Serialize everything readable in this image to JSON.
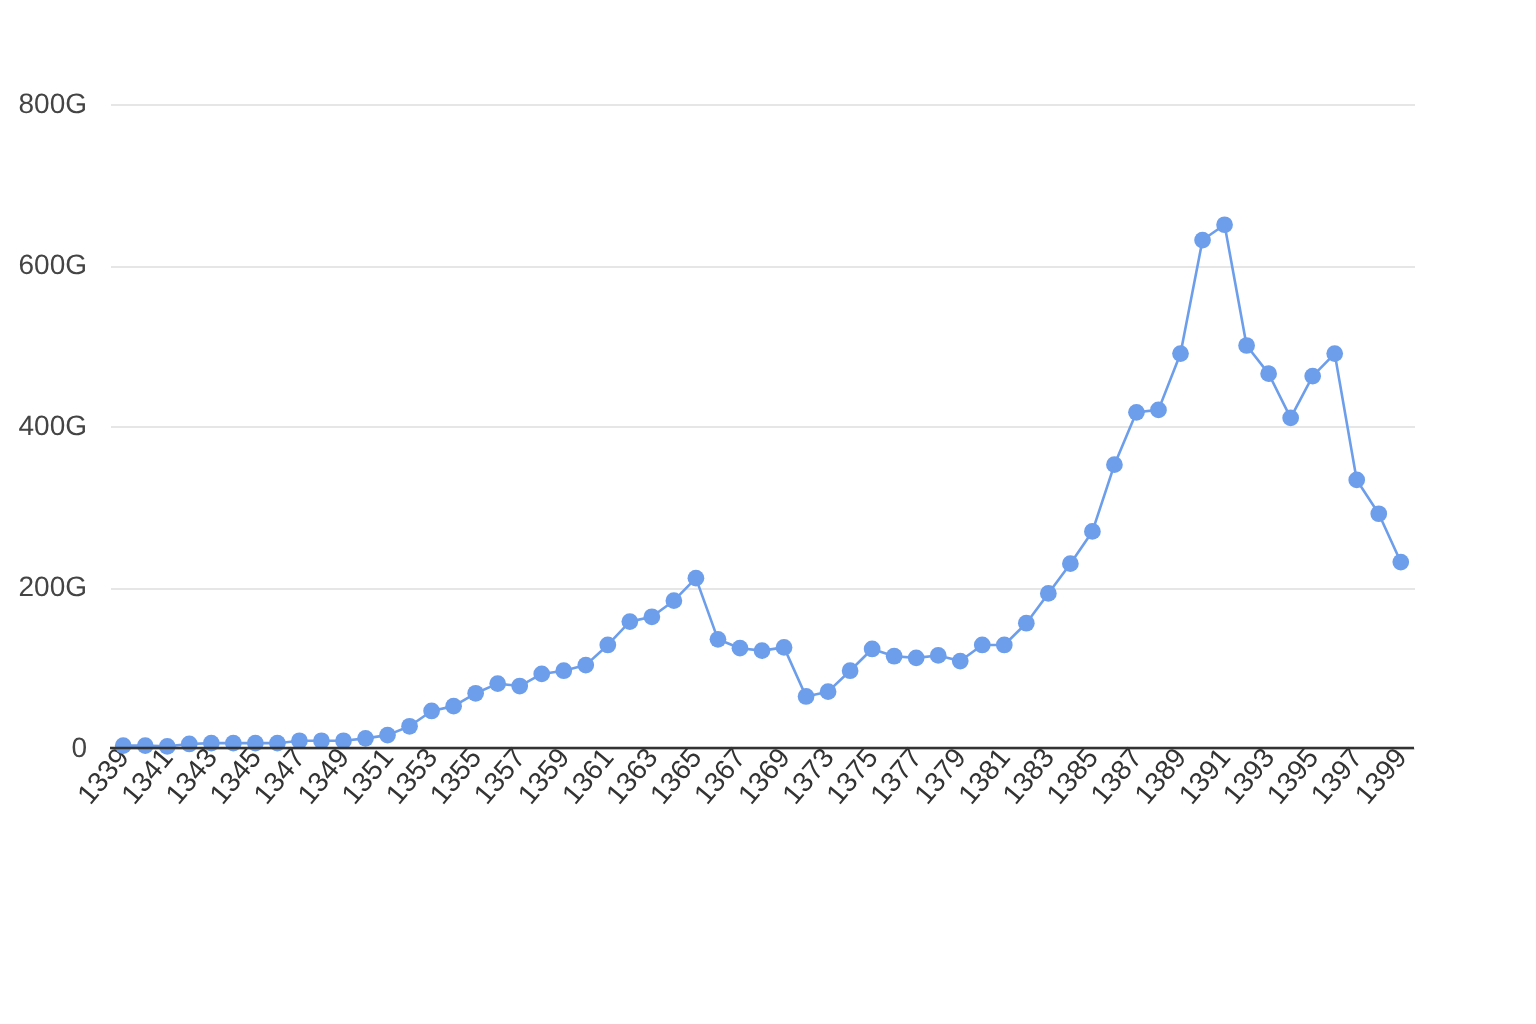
{
  "chart_data": {
    "type": "line",
    "categories": [
      "1339",
      null,
      "1341",
      null,
      "1343",
      null,
      "1345",
      null,
      "1347",
      null,
      "1349",
      null,
      "1351",
      null,
      "1353",
      null,
      "1355",
      null,
      "1357",
      null,
      "1359",
      null,
      "1361",
      null,
      "1363",
      null,
      "1365",
      null,
      "1367",
      null,
      "1369",
      null,
      "1373",
      null,
      "1375",
      null,
      "1377",
      null,
      "1379",
      null,
      "1381",
      null,
      "1383",
      null,
      "1385",
      null,
      "1387",
      null,
      "1389",
      null,
      "1391",
      null,
      "1393",
      null,
      "1395",
      null,
      "1397",
      null,
      "1399"
    ],
    "series": [
      {
        "color": "#6d9eeb",
        "values": [
          3,
          3,
          2,
          5,
          6,
          6,
          6,
          6,
          9,
          9,
          9,
          12,
          16,
          27,
          46,
          52,
          68,
          80,
          77,
          92,
          96,
          103,
          128,
          157,
          163,
          183,
          211,
          135,
          124,
          121,
          125,
          64,
          70,
          96,
          123,
          114,
          112,
          115,
          108,
          128,
          128,
          155,
          192,
          229,
          269,
          352,
          417,
          420,
          490,
          631,
          650,
          500,
          465,
          410,
          462,
          490,
          333,
          291,
          231
        ]
      }
    ],
    "ylim": [
      0,
      800
    ],
    "yticks": [
      0,
      {
        "value": 200,
        "label": "200G"
      },
      {
        "value": 400,
        "label": "400G"
      },
      {
        "value": 600,
        "label": "600G"
      },
      {
        "value": 800,
        "label": "800G"
      }
    ],
    "grid": "y",
    "marker": "circle",
    "line_style": "solid"
  }
}
